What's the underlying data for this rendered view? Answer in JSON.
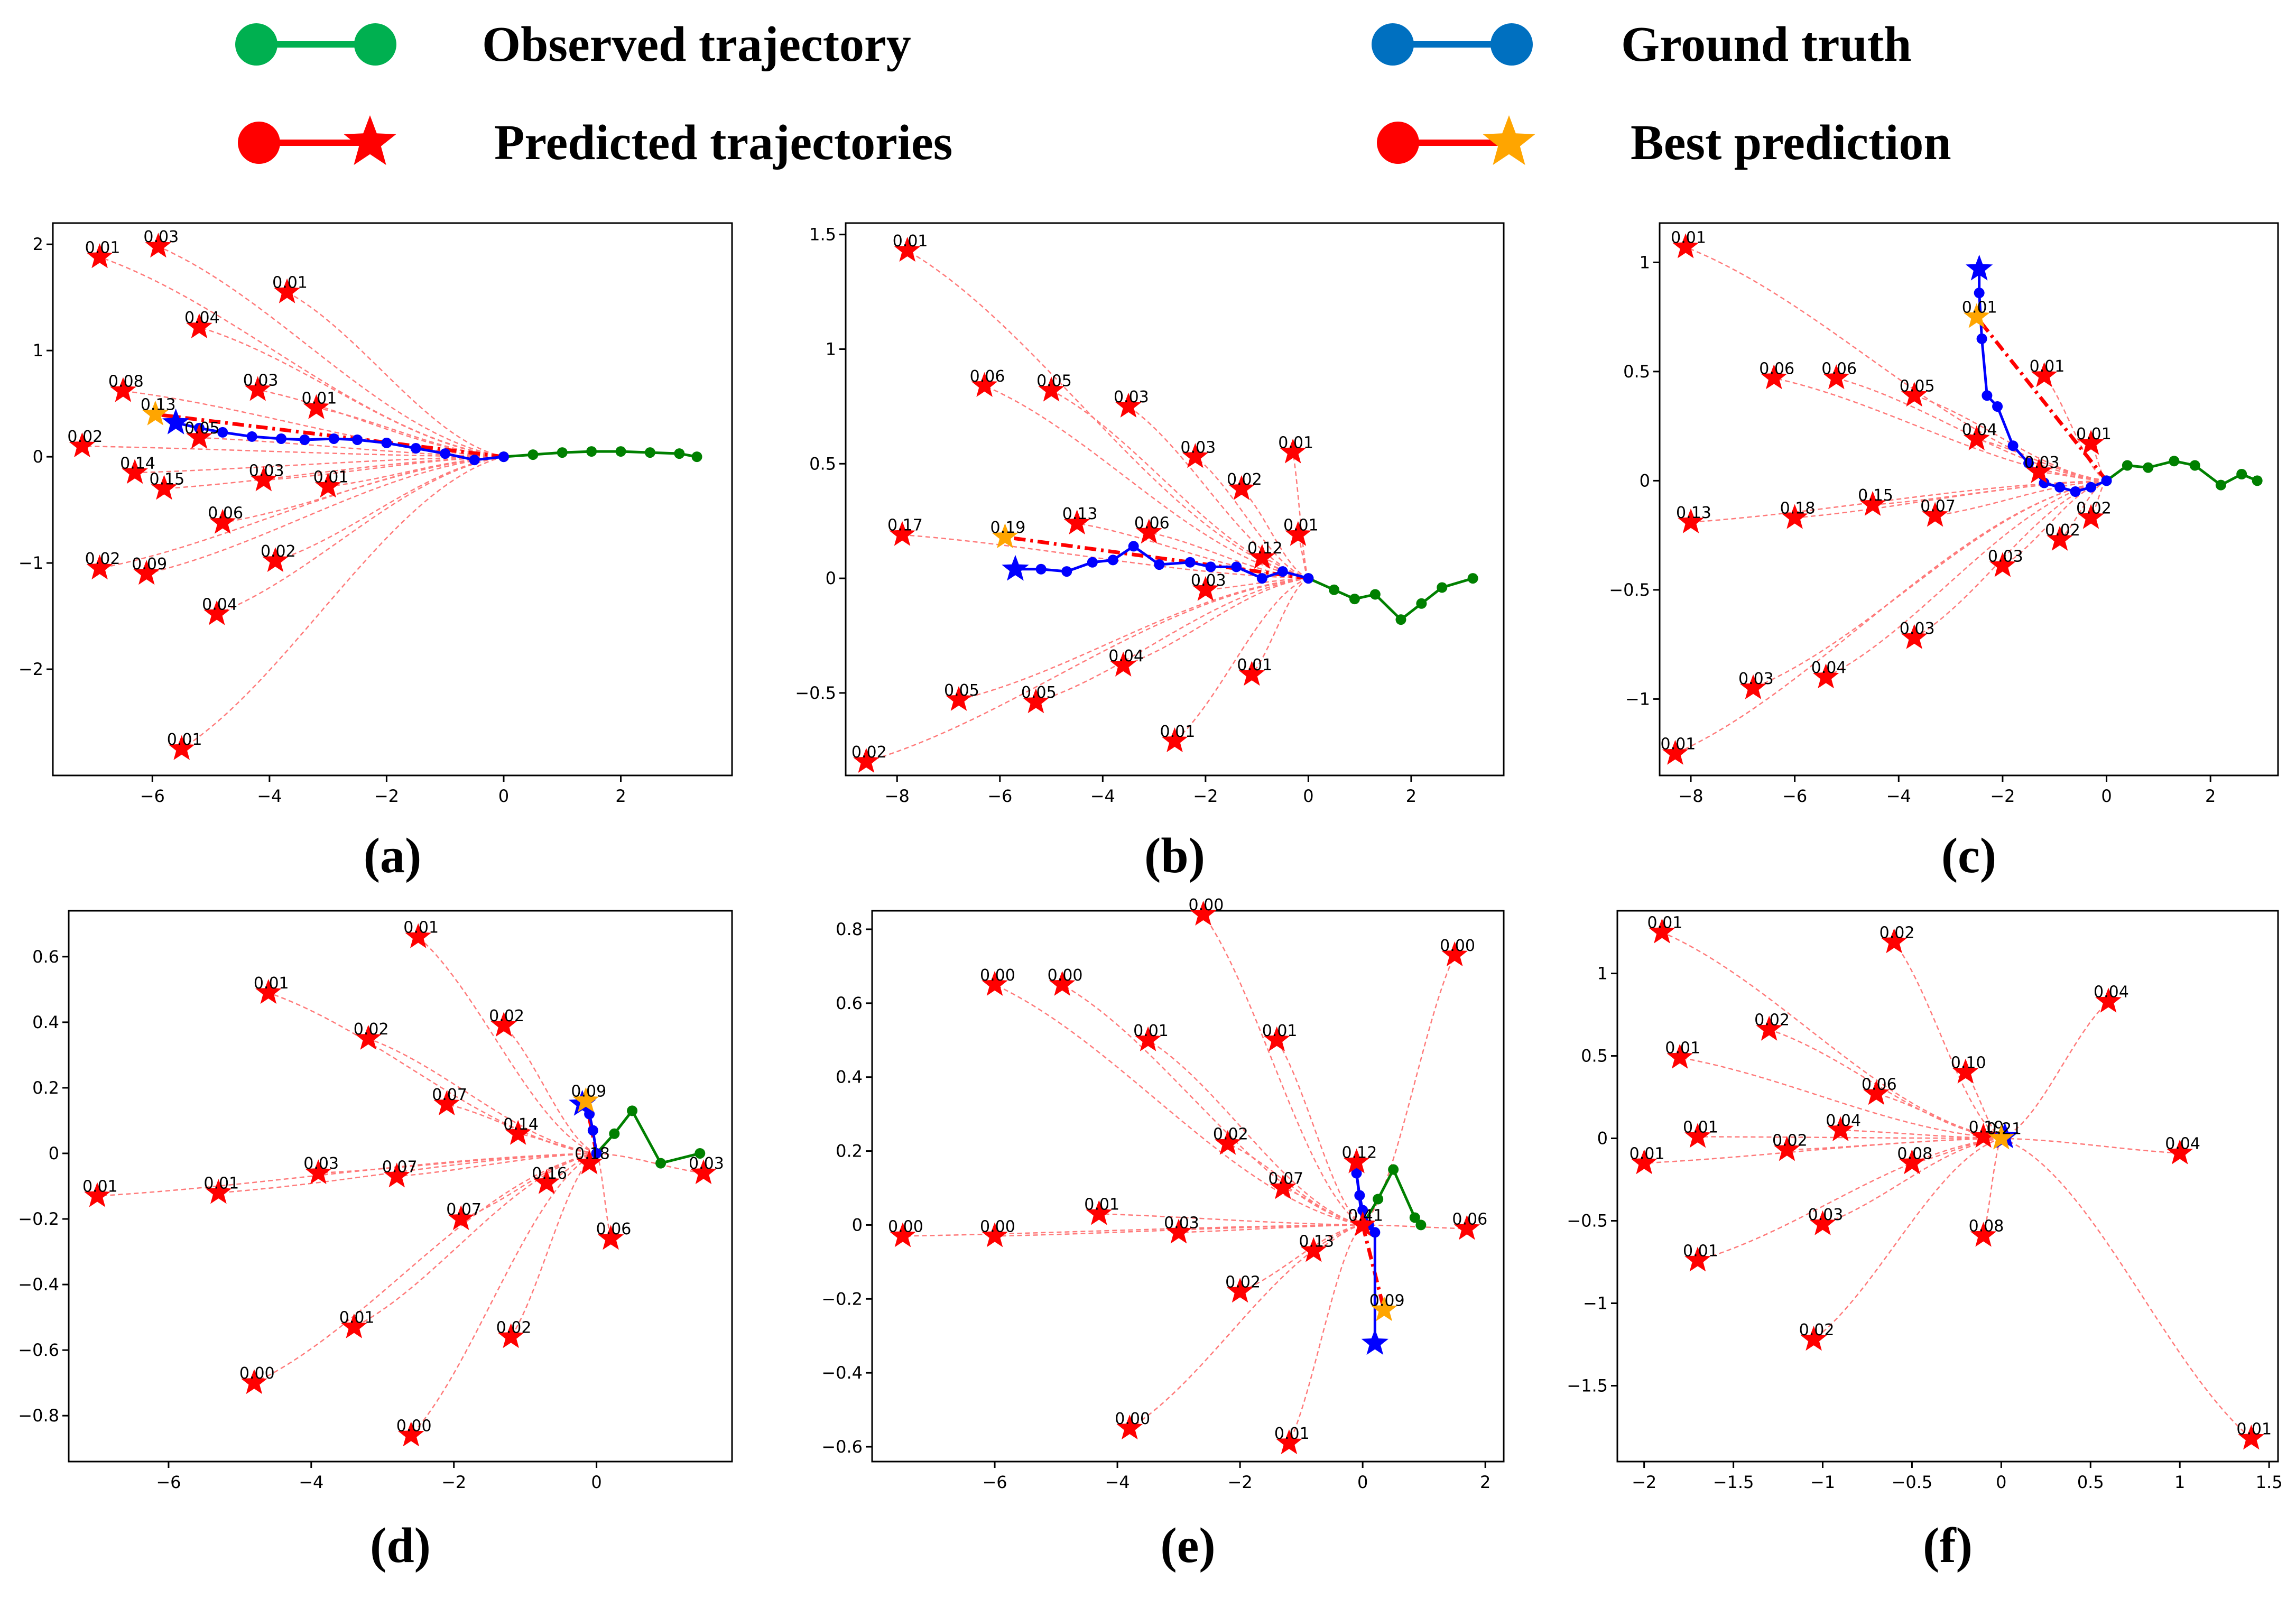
{
  "legend": {
    "observed": "Observed trajectory",
    "ground_truth": "Ground truth",
    "predicted": "Predicted trajectories",
    "best": "Best prediction",
    "colors": {
      "observed": "#00b050",
      "ground_truth": "#0070c0",
      "predicted": "#e00000",
      "best": "#ffa500"
    }
  },
  "colors": {
    "observed": "#008000",
    "gt": "#0000ff",
    "pred": "#ff0000",
    "best": "#ffa500",
    "curve": "#ff7a7a"
  },
  "chart_data": [
    {
      "type": "line",
      "panel_label": "(a)",
      "xlim": [
        -7.7,
        3.9
      ],
      "ylim": [
        -3.0,
        2.2
      ],
      "xticks": [
        -6,
        -4,
        -2,
        0,
        2
      ],
      "yticks": [
        2,
        1,
        0,
        -1,
        -2
      ],
      "observed": [
        [
          0,
          0
        ],
        [
          0.5,
          0.02
        ],
        [
          1.0,
          0.04
        ],
        [
          1.5,
          0.05
        ],
        [
          2.0,
          0.05
        ],
        [
          2.5,
          0.04
        ],
        [
          3.0,
          0.03
        ],
        [
          3.3,
          0
        ]
      ],
      "ground_truth": [
        [
          0,
          0
        ],
        [
          -0.5,
          -0.03
        ],
        [
          -1.0,
          0.03
        ],
        [
          -1.5,
          0.08
        ],
        [
          -2.0,
          0.13
        ],
        [
          -2.5,
          0.16
        ],
        [
          -2.9,
          0.17
        ],
        [
          -3.4,
          0.16
        ],
        [
          -3.8,
          0.17
        ],
        [
          -4.3,
          0.19
        ],
        [
          -4.8,
          0.23
        ],
        [
          -5.2,
          0.27
        ],
        [
          -5.6,
          0.32
        ]
      ],
      "best": {
        "x": -5.95,
        "y": 0.4,
        "p": "0.13"
      },
      "predictions": [
        {
          "x": -6.9,
          "y": 1.88,
          "p": "0.01"
        },
        {
          "x": -5.9,
          "y": 1.98,
          "p": "0.03"
        },
        {
          "x": -3.7,
          "y": 1.55,
          "p": "0.01"
        },
        {
          "x": -5.2,
          "y": 1.22,
          "p": "0.04"
        },
        {
          "x": -6.5,
          "y": 0.62,
          "p": "0.08"
        },
        {
          "x": -4.2,
          "y": 0.63,
          "p": "0.03"
        },
        {
          "x": -3.2,
          "y": 0.46,
          "p": "0.01"
        },
        {
          "x": -7.2,
          "y": 0.1,
          "p": "0.02"
        },
        {
          "x": -5.2,
          "y": 0.18,
          "p": "0.05"
        },
        {
          "x": -6.3,
          "y": -0.15,
          "p": "0.14"
        },
        {
          "x": -5.8,
          "y": -0.3,
          "p": "0.15"
        },
        {
          "x": -4.1,
          "y": -0.22,
          "p": "0.03"
        },
        {
          "x": -3.0,
          "y": -0.28,
          "p": "0.01"
        },
        {
          "x": -4.8,
          "y": -0.62,
          "p": "0.06"
        },
        {
          "x": -3.9,
          "y": -0.98,
          "p": "0.02"
        },
        {
          "x": -6.9,
          "y": -1.05,
          "p": "0.02"
        },
        {
          "x": -6.1,
          "y": -1.1,
          "p": "0.09"
        },
        {
          "x": -4.9,
          "y": -1.48,
          "p": "0.04"
        },
        {
          "x": -5.5,
          "y": -2.75,
          "p": "0.01"
        }
      ]
    },
    {
      "type": "line",
      "panel_label": "(b)",
      "xlim": [
        -9.0,
        3.8
      ],
      "ylim": [
        -0.86,
        1.55
      ],
      "xticks": [
        -8,
        -6,
        -4,
        -2,
        0,
        2
      ],
      "yticks": [
        1.5,
        1.0,
        0.5,
        0.0,
        -0.5
      ],
      "observed": [
        [
          0,
          0
        ],
        [
          0.5,
          -0.05
        ],
        [
          0.9,
          -0.09
        ],
        [
          1.3,
          -0.07
        ],
        [
          1.8,
          -0.18
        ],
        [
          2.2,
          -0.11
        ],
        [
          2.6,
          -0.04
        ],
        [
          3.2,
          0
        ]
      ],
      "ground_truth": [
        [
          0,
          0
        ],
        [
          -0.5,
          0.03
        ],
        [
          -0.9,
          0.0
        ],
        [
          -1.4,
          0.05
        ],
        [
          -1.9,
          0.05
        ],
        [
          -2.3,
          0.07
        ],
        [
          -2.9,
          0.06
        ],
        [
          -3.4,
          0.14
        ],
        [
          -3.8,
          0.08
        ],
        [
          -4.2,
          0.07
        ],
        [
          -4.7,
          0.03
        ],
        [
          -5.2,
          0.04
        ],
        [
          -5.7,
          0.04
        ]
      ],
      "best": {
        "x": -5.9,
        "y": 0.18,
        "p": "0.19"
      },
      "predictions": [
        {
          "x": -7.8,
          "y": 1.43,
          "p": "0.01"
        },
        {
          "x": -6.3,
          "y": 0.84,
          "p": "0.06"
        },
        {
          "x": -5.0,
          "y": 0.82,
          "p": "0.05"
        },
        {
          "x": -3.5,
          "y": 0.75,
          "p": "0.03"
        },
        {
          "x": -2.2,
          "y": 0.53,
          "p": "0.03"
        },
        {
          "x": -0.3,
          "y": 0.55,
          "p": "0.01"
        },
        {
          "x": -1.3,
          "y": 0.39,
          "p": "0.02"
        },
        {
          "x": -7.9,
          "y": 0.19,
          "p": "0.17"
        },
        {
          "x": -4.5,
          "y": 0.24,
          "p": "0.13"
        },
        {
          "x": -3.1,
          "y": 0.2,
          "p": "0.06"
        },
        {
          "x": -0.2,
          "y": 0.19,
          "p": "0.01"
        },
        {
          "x": -0.9,
          "y": 0.09,
          "p": "0.12"
        },
        {
          "x": -2.0,
          "y": -0.05,
          "p": "0.03"
        },
        {
          "x": -3.6,
          "y": -0.38,
          "p": "0.04"
        },
        {
          "x": -1.1,
          "y": -0.42,
          "p": "0.01"
        },
        {
          "x": -6.8,
          "y": -0.53,
          "p": "0.05"
        },
        {
          "x": -5.3,
          "y": -0.54,
          "p": "0.05"
        },
        {
          "x": -2.6,
          "y": -0.71,
          "p": "0.01"
        },
        {
          "x": -8.6,
          "y": -0.8,
          "p": "0.02"
        }
      ]
    },
    {
      "type": "line",
      "panel_label": "(c)",
      "xlim": [
        -8.6,
        3.3
      ],
      "ylim": [
        -1.35,
        1.18
      ],
      "xticks": [
        -8,
        -6,
        -4,
        -2,
        0,
        2
      ],
      "yticks": [
        1.0,
        0.5,
        0.0,
        -0.5,
        -1.0
      ],
      "observed": [
        [
          0,
          0
        ],
        [
          0.4,
          0.07
        ],
        [
          0.8,
          0.06
        ],
        [
          1.3,
          0.09
        ],
        [
          1.7,
          0.07
        ],
        [
          2.2,
          -0.02
        ],
        [
          2.6,
          0.03
        ],
        [
          2.9,
          0
        ]
      ],
      "ground_truth": [
        [
          0,
          0
        ],
        [
          -0.3,
          -0.03
        ],
        [
          -0.6,
          -0.05
        ],
        [
          -0.9,
          -0.03
        ],
        [
          -1.2,
          -0.01
        ],
        [
          -1.5,
          0.08
        ],
        [
          -1.8,
          0.16
        ],
        [
          -2.1,
          0.34
        ],
        [
          -2.3,
          0.39
        ],
        [
          -2.4,
          0.65
        ],
        [
          -2.45,
          0.86
        ],
        [
          -2.45,
          0.97
        ]
      ],
      "best": {
        "x": -2.5,
        "y": 0.75,
        "p": "0.01"
      },
      "predictions": [
        {
          "x": -8.1,
          "y": 1.07,
          "p": "0.01"
        },
        {
          "x": -6.4,
          "y": 0.47,
          "p": "0.06"
        },
        {
          "x": -5.2,
          "y": 0.47,
          "p": "0.06"
        },
        {
          "x": -3.7,
          "y": 0.39,
          "p": "0.05"
        },
        {
          "x": -1.2,
          "y": 0.48,
          "p": "0.01"
        },
        {
          "x": -2.5,
          "y": 0.19,
          "p": "0.04"
        },
        {
          "x": -0.3,
          "y": 0.17,
          "p": "0.01"
        },
        {
          "x": -1.3,
          "y": 0.04,
          "p": "0.03"
        },
        {
          "x": -8.0,
          "y": -0.19,
          "p": "0.13"
        },
        {
          "x": -6.0,
          "y": -0.17,
          "p": "0.18"
        },
        {
          "x": -4.5,
          "y": -0.11,
          "p": "0.15"
        },
        {
          "x": -3.3,
          "y": -0.16,
          "p": "0.07"
        },
        {
          "x": -0.3,
          "y": -0.17,
          "p": "0.02"
        },
        {
          "x": -0.9,
          "y": -0.27,
          "p": "0.02"
        },
        {
          "x": -2.0,
          "y": -0.39,
          "p": "0.03"
        },
        {
          "x": -3.7,
          "y": -0.72,
          "p": "0.03"
        },
        {
          "x": -5.4,
          "y": -0.9,
          "p": "0.04"
        },
        {
          "x": -6.8,
          "y": -0.95,
          "p": "0.03"
        },
        {
          "x": -8.3,
          "y": -1.25,
          "p": "0.01"
        }
      ]
    },
    {
      "type": "line",
      "panel_label": "(d)",
      "xlim": [
        -7.4,
        1.9
      ],
      "ylim": [
        -0.94,
        0.74
      ],
      "xticks": [
        -6,
        -4,
        -2,
        0
      ],
      "yticks": [
        0.6,
        0.4,
        0.2,
        0.0,
        -0.2,
        -0.4,
        -0.6,
        -0.8
      ],
      "observed": [
        [
          0,
          0
        ],
        [
          0.25,
          0.06
        ],
        [
          0.5,
          0.13
        ],
        [
          0.9,
          -0.03
        ],
        [
          1.45,
          0.0
        ]
      ],
      "ground_truth": [
        [
          0,
          0
        ],
        [
          -0.05,
          0.07
        ],
        [
          -0.1,
          0.12
        ],
        [
          -0.2,
          0.15
        ]
      ],
      "best": {
        "x": -0.15,
        "y": 0.16,
        "p": "0.09"
      },
      "predictions": [
        {
          "x": -2.5,
          "y": 0.66,
          "p": "0.01"
        },
        {
          "x": -4.6,
          "y": 0.49,
          "p": "0.01"
        },
        {
          "x": -3.2,
          "y": 0.35,
          "p": "0.02"
        },
        {
          "x": -1.3,
          "y": 0.39,
          "p": "0.02"
        },
        {
          "x": -2.1,
          "y": 0.15,
          "p": "0.07"
        },
        {
          "x": -1.1,
          "y": 0.06,
          "p": "0.14"
        },
        {
          "x": -3.9,
          "y": -0.06,
          "p": "0.03"
        },
        {
          "x": -2.8,
          "y": -0.07,
          "p": "0.07"
        },
        {
          "x": -0.7,
          "y": -0.09,
          "p": "0.16"
        },
        {
          "x": -0.1,
          "y": -0.03,
          "p": "0.18"
        },
        {
          "x": 1.5,
          "y": -0.06,
          "p": "0.03"
        },
        {
          "x": -7.0,
          "y": -0.13,
          "p": "0.01"
        },
        {
          "x": -5.3,
          "y": -0.12,
          "p": "0.01"
        },
        {
          "x": -1.9,
          "y": -0.2,
          "p": "0.07"
        },
        {
          "x": 0.2,
          "y": -0.26,
          "p": "0.06"
        },
        {
          "x": -3.4,
          "y": -0.53,
          "p": "0.01"
        },
        {
          "x": -1.2,
          "y": -0.56,
          "p": "0.02"
        },
        {
          "x": -4.8,
          "y": -0.7,
          "p": "0.00"
        },
        {
          "x": -2.6,
          "y": -0.86,
          "p": "0.00"
        }
      ]
    },
    {
      "type": "line",
      "panel_label": "(e)",
      "xlim": [
        -8.0,
        2.3
      ],
      "ylim": [
        -0.64,
        0.85
      ],
      "xticks": [
        -6,
        -4,
        -2,
        0,
        2
      ],
      "yticks": [
        0.8,
        0.6,
        0.4,
        0.2,
        0.0,
        -0.2,
        -0.4,
        -0.6
      ],
      "observed": [
        [
          0,
          0
        ],
        [
          0.25,
          0.07
        ],
        [
          0.5,
          0.15
        ],
        [
          0.85,
          0.02
        ],
        [
          0.95,
          0.0
        ]
      ],
      "ground_truth": [
        [
          0,
          0
        ],
        [
          -0.1,
          0.14
        ],
        [
          -0.05,
          0.08
        ],
        [
          0.0,
          0.04
        ],
        [
          0.1,
          0.0
        ],
        [
          0.2,
          -0.02
        ],
        [
          0.2,
          -0.32
        ]
      ],
      "best": {
        "x": 0.35,
        "y": -0.23,
        "p": "0.09"
      },
      "predictions": [
        {
          "x": -2.6,
          "y": 0.84,
          "p": "0.00"
        },
        {
          "x": 1.5,
          "y": 0.73,
          "p": "0.00"
        },
        {
          "x": -6.0,
          "y": 0.65,
          "p": "0.00"
        },
        {
          "x": -4.9,
          "y": 0.65,
          "p": "0.00"
        },
        {
          "x": -3.5,
          "y": 0.5,
          "p": "0.01"
        },
        {
          "x": -1.4,
          "y": 0.5,
          "p": "0.01"
        },
        {
          "x": -2.2,
          "y": 0.22,
          "p": "0.02"
        },
        {
          "x": -0.1,
          "y": 0.17,
          "p": "0.12"
        },
        {
          "x": -1.3,
          "y": 0.1,
          "p": "0.07"
        },
        {
          "x": -4.3,
          "y": 0.03,
          "p": "0.01"
        },
        {
          "x": -3.0,
          "y": -0.02,
          "p": "0.03"
        },
        {
          "x": -7.5,
          "y": -0.03,
          "p": "0.00"
        },
        {
          "x": -6.0,
          "y": -0.03,
          "p": "0.00"
        },
        {
          "x": -0.8,
          "y": -0.07,
          "p": "0.13"
        },
        {
          "x": 0.0,
          "y": 0.0,
          "p": "0.41"
        },
        {
          "x": 1.7,
          "y": -0.01,
          "p": "0.06"
        },
        {
          "x": -2.0,
          "y": -0.18,
          "p": "0.02"
        },
        {
          "x": -3.8,
          "y": -0.55,
          "p": "0.00"
        },
        {
          "x": -1.2,
          "y": -0.59,
          "p": "0.01"
        }
      ]
    },
    {
      "type": "line",
      "panel_label": "(f)",
      "xlim": [
        -2.15,
        1.55
      ],
      "ylim": [
        -1.96,
        1.38
      ],
      "xticks": [
        -2.0,
        -1.5,
        -1.0,
        -0.5,
        0.0,
        0.5,
        1.0,
        1.5
      ],
      "yticks": [
        1.0,
        0.5,
        0.0,
        -0.5,
        -1.0,
        -1.5
      ],
      "observed": [
        [
          0,
          0
        ]
      ],
      "ground_truth": [
        [
          0,
          0
        ],
        [
          0.02,
          0.01
        ]
      ],
      "best": {
        "x": 0.0,
        "y": 0.0,
        "p": "0.21"
      },
      "predictions": [
        {
          "x": -1.9,
          "y": 1.25,
          "p": "0.01"
        },
        {
          "x": -0.6,
          "y": 1.19,
          "p": "0.02"
        },
        {
          "x": 0.6,
          "y": 0.83,
          "p": "0.04"
        },
        {
          "x": -1.3,
          "y": 0.66,
          "p": "0.02"
        },
        {
          "x": -1.8,
          "y": 0.49,
          "p": "0.01"
        },
        {
          "x": -0.2,
          "y": 0.4,
          "p": "0.10"
        },
        {
          "x": -0.7,
          "y": 0.27,
          "p": "0.06"
        },
        {
          "x": -1.7,
          "y": 0.01,
          "p": "0.01"
        },
        {
          "x": -0.9,
          "y": 0.05,
          "p": "0.04"
        },
        {
          "x": -1.2,
          "y": -0.07,
          "p": "0.02"
        },
        {
          "x": -0.1,
          "y": 0.01,
          "p": "0.19"
        },
        {
          "x": -2.0,
          "y": -0.15,
          "p": "0.01"
        },
        {
          "x": -0.5,
          "y": -0.15,
          "p": "0.08"
        },
        {
          "x": 1.0,
          "y": -0.09,
          "p": "0.04"
        },
        {
          "x": -1.0,
          "y": -0.52,
          "p": "0.03"
        },
        {
          "x": -0.1,
          "y": -0.59,
          "p": "0.08"
        },
        {
          "x": -1.7,
          "y": -0.74,
          "p": "0.01"
        },
        {
          "x": -1.05,
          "y": -1.22,
          "p": "0.02"
        },
        {
          "x": 1.4,
          "y": -1.82,
          "p": "0.01"
        }
      ]
    }
  ]
}
